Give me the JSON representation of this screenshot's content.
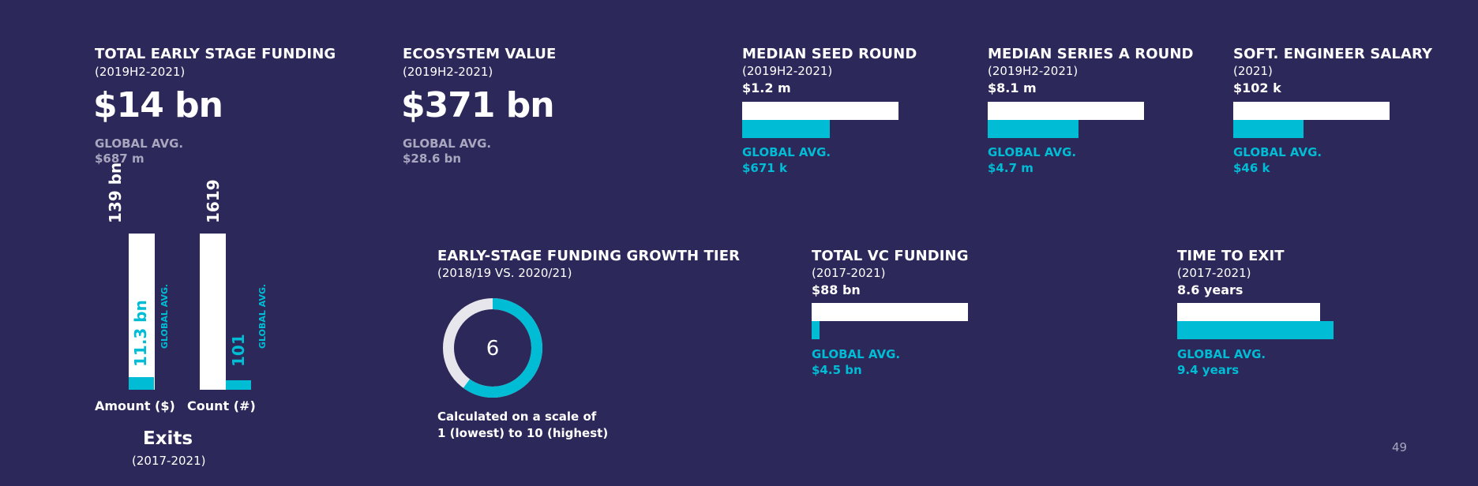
{
  "colors": {
    "background": "#2c2859",
    "accent": "#00bcd4",
    "white": "#ffffff",
    "muted": "#a9a6bf"
  },
  "total_funding": {
    "title": "TOTAL EARLY STAGE FUNDING",
    "period": "(2019H2-2021)",
    "value": "$14 bn",
    "global_label": "GLOBAL AVG.",
    "global_value": "$687 m"
  },
  "ecosystem": {
    "title": "ECOSYSTEM VALUE",
    "period": "(2019H2-2021)",
    "value": "$371 bn",
    "global_label": "GLOBAL AVG.",
    "global_value": "$28.6 bn"
  },
  "exits": {
    "title": "Exits",
    "period": "(2017-2021)",
    "global_label": "GLOBAL AVG."
  },
  "growth_tier": {
    "title": "EARLY-STAGE FUNDING GROWTH TIER",
    "period": "(2018/19 VS. 2020/21)",
    "note_line1": "Calculated on a scale of",
    "note_line2": "1 (lowest) to 10 (highest)"
  },
  "page_number": "49",
  "chart_data": [
    {
      "type": "bar",
      "title": "MEDIAN SEED ROUND",
      "subtitle": "(2019H2-2021)",
      "series": [
        {
          "name": "",
          "value": 1.2,
          "label": "$1.2 m"
        },
        {
          "name": "GLOBAL AVG.",
          "value": 0.671,
          "label": "$671 k"
        }
      ],
      "scale_max": 1.2
    },
    {
      "type": "bar",
      "title": "MEDIAN SERIES A ROUND",
      "subtitle": "(2019H2-2021)",
      "series": [
        {
          "name": "",
          "value": 8.1,
          "label": "$8.1 m"
        },
        {
          "name": "GLOBAL AVG.",
          "value": 4.7,
          "label": "$4.7 m"
        }
      ],
      "scale_max": 8.1
    },
    {
      "type": "bar",
      "title": "SOFT. ENGINEER SALARY",
      "subtitle": "(2021)",
      "series": [
        {
          "name": "",
          "value": 102,
          "label": "$102 k"
        },
        {
          "name": "GLOBAL AVG.",
          "value": 46,
          "label": "$46 k"
        }
      ],
      "scale_max": 102
    },
    {
      "type": "bar",
      "title": "TOTAL VC FUNDING",
      "subtitle": "(2017-2021)",
      "series": [
        {
          "name": "",
          "value": 88,
          "label": "$88 bn"
        },
        {
          "name": "GLOBAL AVG.",
          "value": 4.5,
          "label": "$4.5 bn"
        }
      ],
      "scale_max": 88
    },
    {
      "type": "bar",
      "title": "TIME TO EXIT",
      "subtitle": "(2017-2021)",
      "series": [
        {
          "name": "",
          "value": 8.6,
          "label": "8.6 years"
        },
        {
          "name": "GLOBAL AVG.",
          "value": 9.4,
          "label": "9.4 years"
        }
      ],
      "scale_max": 9.4
    },
    {
      "type": "bar",
      "title": "Exits",
      "subtitle": "(2017-2021)",
      "categories": [
        "Amount ($)",
        "Count (#)"
      ],
      "series": [
        {
          "name": "",
          "values": [
            139,
            1619
          ],
          "labels": [
            "139 bn",
            "1619"
          ]
        },
        {
          "name": "GLOBAL AVG.",
          "values": [
            11.3,
            101
          ],
          "labels": [
            "11.3 bn",
            "101"
          ]
        }
      ]
    },
    {
      "type": "pie",
      "title": "EARLY-STAGE FUNDING GROWTH TIER",
      "subtitle": "(2018/19 VS. 2020/21)",
      "value": 6,
      "max": 10,
      "label": "6"
    }
  ]
}
